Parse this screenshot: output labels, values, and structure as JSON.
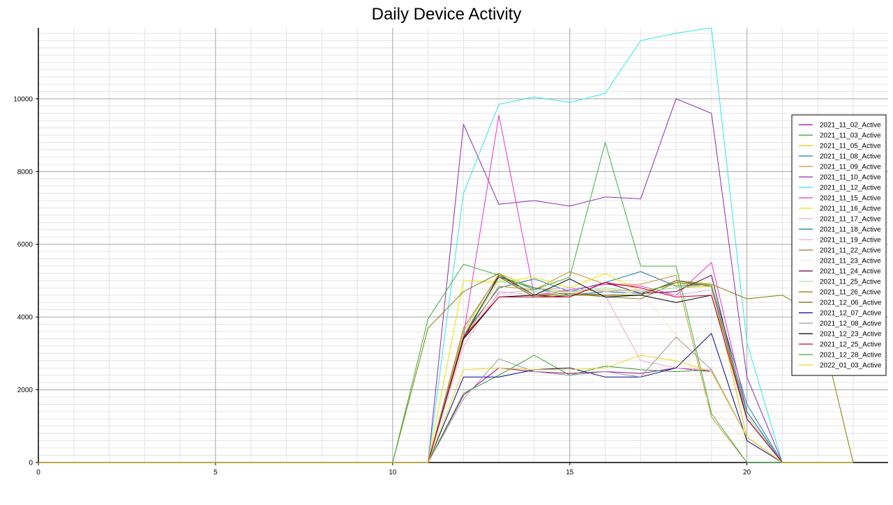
{
  "chart_data": {
    "type": "line",
    "title": "Daily Device Activity",
    "xlabel": "",
    "ylabel": "",
    "xlim": [
      0,
      24
    ],
    "ylim": [
      0,
      12000
    ],
    "x_major_ticks": [
      0,
      5,
      10,
      15,
      20
    ],
    "x_minor_step": 1,
    "y_major_ticks": [
      0,
      2000,
      4000,
      6000,
      8000,
      10000
    ],
    "y_minor_step": 200,
    "grid": true,
    "legend_position": "right",
    "x": [
      0,
      1,
      2,
      3,
      4,
      5,
      6,
      7,
      8,
      9,
      10,
      11,
      12,
      13,
      14,
      15,
      16,
      17,
      18,
      19,
      20,
      21,
      22,
      23
    ],
    "series": [
      {
        "name": "2021_11_02_Active",
        "color": "#990099",
        "values": [
          0,
          0,
          0,
          0,
          0,
          0,
          0,
          0,
          0,
          0,
          0,
          0,
          1850,
          2600,
          2500,
          2450,
          2500,
          2450,
          2600,
          2500,
          700,
          0,
          0,
          0
        ]
      },
      {
        "name": "2021_11_03_Active",
        "color": "#339933",
        "values": [
          0,
          0,
          0,
          0,
          0,
          0,
          0,
          0,
          0,
          0,
          0,
          0,
          1900,
          2400,
          2950,
          2400,
          2650,
          2550,
          2500,
          2550,
          700,
          0,
          0,
          0
        ]
      },
      {
        "name": "2021_11_05_Active",
        "color": "#e6c200",
        "values": [
          0,
          0,
          0,
          0,
          0,
          0,
          0,
          0,
          0,
          0,
          0,
          0,
          3600,
          5200,
          4800,
          4700,
          4750,
          4700,
          4800,
          4850,
          700,
          0,
          0,
          0
        ]
      },
      {
        "name": "2021_11_08_Active",
        "color": "#1f77b4",
        "values": [
          0,
          0,
          0,
          0,
          0,
          0,
          0,
          0,
          0,
          0,
          0,
          0,
          3500,
          4800,
          5050,
          4700,
          4950,
          5250,
          4850,
          4900,
          1600,
          0,
          0,
          0
        ]
      },
      {
        "name": "2021_11_09_Active",
        "color": "#d08e2a",
        "values": [
          0,
          0,
          0,
          0,
          0,
          0,
          0,
          0,
          0,
          0,
          0,
          0,
          3400,
          4850,
          4750,
          5250,
          4900,
          4900,
          5150,
          1250,
          0,
          0,
          0,
          0
        ]
      },
      {
        "name": "2021_11_10_Active",
        "color": "#8a2bb2",
        "values": [
          0,
          0,
          0,
          0,
          0,
          0,
          0,
          0,
          0,
          0,
          0,
          0,
          9300,
          7100,
          7200,
          7050,
          7300,
          7250,
          10000,
          9600,
          2350,
          0,
          0,
          0
        ]
      },
      {
        "name": "2021_11_12_Active",
        "color": "#33e6e6",
        "values": [
          0,
          0,
          0,
          0,
          0,
          0,
          0,
          0,
          0,
          0,
          0,
          0,
          7400,
          9850,
          10050,
          9900,
          10150,
          11600,
          11800,
          11950,
          3300,
          0,
          0,
          0
        ]
      },
      {
        "name": "2021_11_15_Active",
        "color": "#e633cc",
        "values": [
          0,
          0,
          0,
          0,
          0,
          0,
          0,
          0,
          0,
          0,
          0,
          0,
          3500,
          9550,
          4600,
          4750,
          4900,
          4850,
          4600,
          5500,
          1400,
          0,
          0,
          0
        ]
      },
      {
        "name": "2021_11_16_Active",
        "color": "#e6e600",
        "values": [
          0,
          0,
          0,
          0,
          0,
          0,
          0,
          0,
          0,
          0,
          0,
          0,
          5000,
          4950,
          5100,
          4800,
          5200,
          4700,
          4900,
          4900,
          1300,
          0,
          0,
          0
        ]
      },
      {
        "name": "2021_11_17_Active",
        "color": "#f0a8c8",
        "values": [
          0,
          0,
          0,
          0,
          0,
          0,
          0,
          0,
          0,
          0,
          0,
          0,
          3200,
          4700,
          4600,
          4700,
          4600,
          2800,
          2600,
          2550,
          700,
          0,
          0,
          0
        ]
      },
      {
        "name": "2021_11_18_Active",
        "color": "#007a99",
        "values": [
          0,
          0,
          0,
          0,
          0,
          0,
          0,
          0,
          0,
          0,
          0,
          0,
          3500,
          5100,
          4800,
          4600,
          4700,
          4650,
          4950,
          4850,
          1400,
          0,
          0,
          0
        ]
      },
      {
        "name": "2021_11_19_Active",
        "color": "#d9a6f0",
        "values": [
          0,
          0,
          0,
          0,
          0,
          0,
          0,
          0,
          0,
          0,
          0,
          0,
          3400,
          4650,
          4750,
          4800,
          4700,
          4750,
          4600,
          4750,
          1300,
          0,
          0,
          0
        ]
      },
      {
        "name": "2021_11_22_Active",
        "color": "#9c7a3c",
        "values": [
          0,
          0,
          0,
          0,
          0,
          0,
          0,
          0,
          0,
          0,
          0,
          0,
          3700,
          5150,
          4600,
          4650,
          4550,
          4500,
          4950,
          4850,
          1200,
          0,
          0,
          0
        ]
      },
      {
        "name": "2021_11_23_Active",
        "color": "#f5e6cc",
        "values": [
          0,
          0,
          0,
          0,
          0,
          0,
          0,
          0,
          0,
          0,
          0,
          0,
          3300,
          4600,
          4700,
          4650,
          4600,
          4700,
          3500,
          1500,
          600,
          0,
          0,
          0
        ]
      },
      {
        "name": "2021_11_24_Active",
        "color": "#660033",
        "values": [
          0,
          0,
          0,
          0,
          0,
          0,
          0,
          0,
          0,
          0,
          0,
          0,
          3400,
          5150,
          4600,
          4550,
          4950,
          4650,
          4700,
          5150,
          1200,
          0,
          0,
          0
        ]
      },
      {
        "name": "2021_11_25_Active",
        "color": "#99e6b3",
        "values": [
          0,
          0,
          0,
          0,
          0,
          0,
          0,
          0,
          0,
          0,
          0,
          0,
          3500,
          5000,
          4700,
          4700,
          4800,
          4700,
          4800,
          4900,
          1300,
          0,
          0,
          0
        ]
      },
      {
        "name": "2021_11_26_Active",
        "color": "#808000",
        "values": [
          0,
          0,
          0,
          0,
          0,
          0,
          0,
          0,
          0,
          0,
          0,
          3700,
          4700,
          5200,
          4600,
          4650,
          4600,
          4600,
          5000,
          4900,
          4500,
          4600,
          4050,
          0
        ]
      },
      {
        "name": "2021_12_06_Active",
        "color": "#6b6b00",
        "values": [
          0,
          0,
          0,
          0,
          0,
          0,
          0,
          0,
          0,
          0,
          0,
          0,
          3450,
          5100,
          4550,
          4600,
          4600,
          4600,
          5000,
          4850,
          1200,
          0,
          0,
          0
        ]
      },
      {
        "name": "2021_12_07_Active",
        "color": "#000080",
        "values": [
          0,
          0,
          0,
          0,
          0,
          0,
          0,
          0,
          0,
          0,
          0,
          0,
          2350,
          2350,
          2550,
          2600,
          2350,
          2350,
          2600,
          3550,
          600,
          0,
          0,
          0
        ]
      },
      {
        "name": "2021_12_08_Active",
        "color": "#999999",
        "values": [
          0,
          0,
          0,
          0,
          0,
          0,
          0,
          0,
          0,
          0,
          0,
          0,
          1750,
          2850,
          2500,
          2400,
          2500,
          2350,
          3450,
          2550,
          700,
          0,
          0,
          0
        ]
      },
      {
        "name": "2021_12_23_Active",
        "color": "#000000",
        "values": [
          0,
          0,
          0,
          0,
          0,
          0,
          0,
          0,
          0,
          0,
          0,
          0,
          3400,
          4550,
          4600,
          5050,
          4550,
          4600,
          4400,
          4600,
          1200,
          0,
          0,
          0
        ]
      },
      {
        "name": "2021_12_25_Active",
        "color": "#cc0033",
        "values": [
          0,
          0,
          0,
          0,
          0,
          0,
          0,
          0,
          0,
          0,
          0,
          0,
          3450,
          4550,
          4550,
          4550,
          4950,
          4800,
          4550,
          4600,
          1200,
          0,
          0,
          0
        ]
      },
      {
        "name": "2021_12_28_Active",
        "color": "#3cb043",
        "values": [
          0,
          0,
          0,
          0,
          0,
          0,
          0,
          0,
          0,
          0,
          0,
          3950,
          5450,
          5150,
          4750,
          5100,
          8800,
          5400,
          5400,
          1350,
          0,
          0,
          0,
          0
        ]
      },
      {
        "name": "2022_01_03_Active",
        "color": "#f2d21a",
        "values": [
          0,
          0,
          0,
          0,
          0,
          0,
          0,
          0,
          0,
          0,
          0,
          0,
          2550,
          2600,
          2550,
          2550,
          2600,
          2950,
          2800,
          2500,
          700,
          0,
          0,
          0
        ]
      }
    ]
  }
}
